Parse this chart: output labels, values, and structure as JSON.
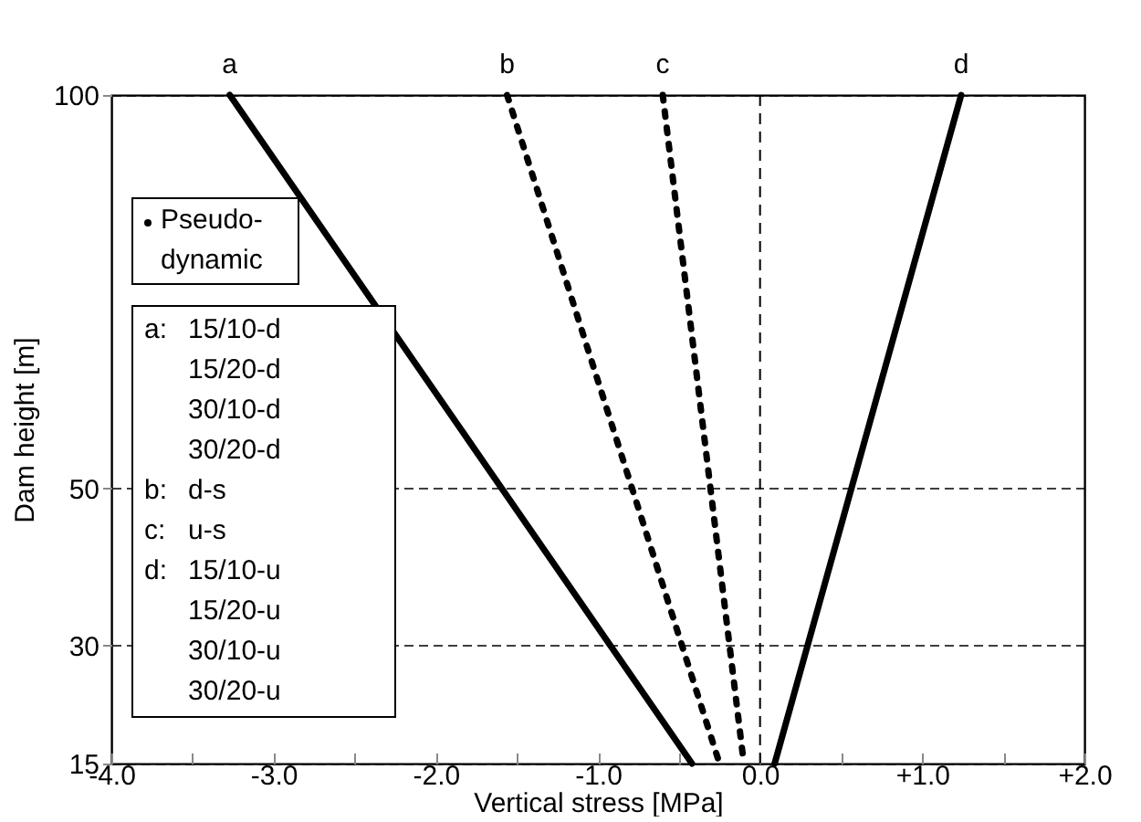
{
  "chart_data": {
    "type": "line",
    "xlabel": "Vertical stress [MPa]",
    "ylabel": "Dam height [m]",
    "xlim": [
      -4,
      2
    ],
    "ylim": [
      15,
      100
    ],
    "xticks": [
      {
        "value": -4,
        "label": "-4.0"
      },
      {
        "value": -3.5,
        "label": null
      },
      {
        "value": -3,
        "label": "-3.0"
      },
      {
        "value": -2.5,
        "label": null
      },
      {
        "value": -2,
        "label": "-2.0"
      },
      {
        "value": -1.5,
        "label": null
      },
      {
        "value": -1,
        "label": "-1.0"
      },
      {
        "value": -0.5,
        "label": null
      },
      {
        "value": 0,
        "label": "0.0"
      },
      {
        "value": 0.5,
        "label": null
      },
      {
        "value": 1,
        "label": "+1.0"
      },
      {
        "value": 1.5,
        "label": null
      },
      {
        "value": 2,
        "label": "+2.0"
      }
    ],
    "yticks": [
      15,
      30,
      50,
      100
    ],
    "grid": "y",
    "marker": "none",
    "ref_lines": [
      {
        "axis": "x",
        "value": 0,
        "line_style": "dashed",
        "color": "#000000"
      }
    ],
    "series": [
      {
        "name": "a",
        "color": "#000000",
        "line_style": "solid",
        "x": [
          -3.27,
          -0.42
        ],
        "values": [
          100,
          15
        ]
      },
      {
        "name": "b",
        "color": "#000000",
        "line_style": "dotted",
        "x": [
          -1.56,
          -0.25
        ],
        "values": [
          100,
          15
        ]
      },
      {
        "name": "c",
        "color": "#000000",
        "line_style": "dotted",
        "x": [
          -0.6,
          -0.1
        ],
        "values": [
          100,
          15
        ]
      },
      {
        "name": "d",
        "color": "#000000",
        "line_style": "solid",
        "x": [
          1.24,
          0.09
        ],
        "values": [
          100,
          15
        ]
      }
    ],
    "annotations": [
      "Pseudo-dynamic",
      "a: 15/10-d",
      "15/20-d",
      "30/10-d",
      "30/20-d",
      "b: d-s",
      "c: u-s",
      "d: 15/10-u",
      "15/20-u",
      "30/10-u",
      "30/20-u"
    ]
  }
}
